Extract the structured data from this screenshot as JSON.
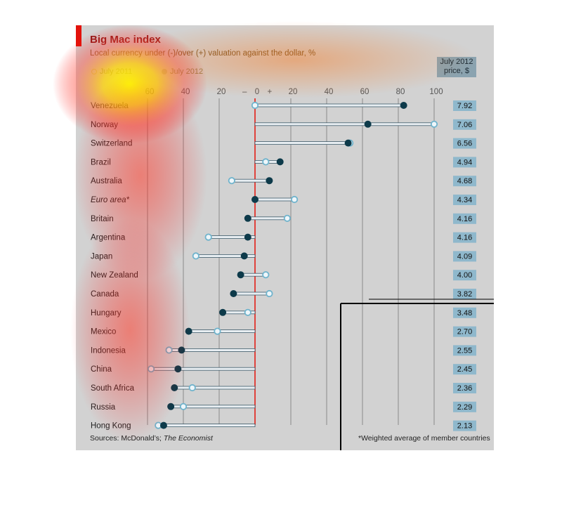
{
  "header": {
    "title": "Big Mac index",
    "subtitle": "Local currency under (-)/over (+) valuation against the dollar, %",
    "legend_2011": "July 2011",
    "legend_2012": "July 2012",
    "price_header_line1": "July 2012",
    "price_header_line2": "price, $"
  },
  "footer": {
    "source_label": "Sources: McDonald’s;",
    "source_pub": "The Economist",
    "footnote": "*Weighted average of member countries"
  },
  "colors": {
    "panel": "#d2d2d2",
    "accent_red": "#e3120b",
    "dot_2012": "#0d3a4a",
    "dot_2011": "#6fb3cc",
    "price_box": "#8fb8cc"
  },
  "chart_data": {
    "type": "dot-plot",
    "title": "Big Mac index",
    "subtitle": "Local currency under (-)/over (+) valuation against the dollar, %",
    "x_ticks": [
      "60",
      "40",
      "20",
      "–",
      "0",
      "+",
      "20",
      "40",
      "60",
      "80",
      "100"
    ],
    "xlim": [
      -60,
      100
    ],
    "series": [
      {
        "name": "July 2011",
        "values": [
          0,
          100,
          53,
          6,
          -13,
          22,
          18,
          -26,
          -33,
          6,
          8,
          -4,
          -21,
          -48,
          -58,
          -35,
          -40,
          -54
        ]
      },
      {
        "name": "July 2012",
        "values": [
          83,
          63,
          52,
          14,
          8,
          0,
          -4,
          -4,
          -6,
          -8,
          -12,
          -18,
          -37,
          -41,
          -43,
          -45,
          -47,
          -51
        ]
      }
    ],
    "categories": [
      "Venezuela",
      "Norway",
      "Switzerland",
      "Brazil",
      "Australia",
      "Euro area*",
      "Britain",
      "Argentina",
      "Japan",
      "New Zealand",
      "Canada",
      "Hungary",
      "Mexico",
      "Indonesia",
      "China",
      "South Africa",
      "Russia",
      "Hong Kong"
    ],
    "prices": [
      "7.92",
      "7.06",
      "6.56",
      "4.94",
      "4.68",
      "4.34",
      "4.16",
      "4.16",
      "4.09",
      "4.00",
      "3.82",
      "3.48",
      "2.70",
      "2.55",
      "2.45",
      "2.36",
      "2.29",
      "2.13"
    ],
    "price_column_header": "July 2012 price, $",
    "grid": true
  }
}
